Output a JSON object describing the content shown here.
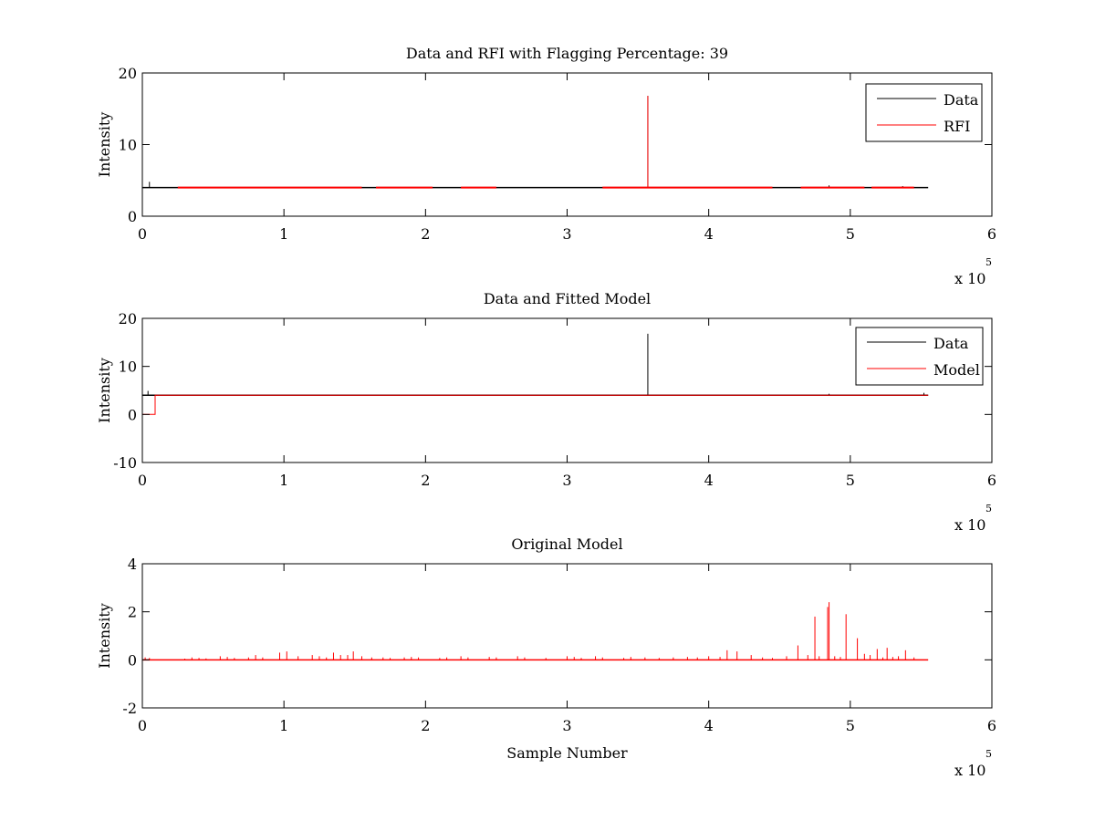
{
  "chart_data": [
    {
      "type": "line",
      "title": "Data and RFI with Flagging Percentage: 39",
      "xlabel": "",
      "ylabel": "Intensity",
      "xlim": [
        0,
        6
      ],
      "ylim": [
        0,
        20
      ],
      "x_multiplier": "x 10",
      "x_multiplier_exp": "5",
      "xticks": [
        0,
        1,
        2,
        3,
        4,
        5,
        6
      ],
      "yticks": [
        0,
        10,
        20
      ],
      "legend": "top-right",
      "series": [
        {
          "name": "Data",
          "color": "#000000",
          "baseline": 4.0,
          "x_end": 5.55,
          "spikes": [
            [
              0.05,
              4.8
            ],
            [
              3.57,
              16.8
            ],
            [
              4.85,
              4.3
            ],
            [
              5.37,
              4.2
            ]
          ]
        },
        {
          "name": "RFI",
          "color": "#ff0000",
          "baseline": 4.0,
          "segments": [
            [
              0.25,
              1.55
            ],
            [
              1.65,
              2.05
            ],
            [
              2.25,
              2.5
            ],
            [
              3.25,
              4.45
            ],
            [
              4.65,
              5.1
            ],
            [
              5.15,
              5.45
            ]
          ],
          "spikes": [
            [
              3.57,
              16.8
            ]
          ]
        }
      ]
    },
    {
      "type": "line",
      "title": "Data and Fitted Model",
      "xlabel": "",
      "ylabel": "Intensity",
      "xlim": [
        0,
        6
      ],
      "ylim": [
        -10,
        20
      ],
      "x_multiplier": "x 10",
      "x_multiplier_exp": "5",
      "xticks": [
        0,
        1,
        2,
        3,
        4,
        5,
        6
      ],
      "yticks": [
        -10,
        0,
        10,
        20
      ],
      "legend": "top-right",
      "series": [
        {
          "name": "Data",
          "color": "#000000",
          "baseline": 4.0,
          "x_end": 5.55,
          "spikes": [
            [
              0.04,
              4.9
            ],
            [
              3.57,
              16.8
            ],
            [
              4.85,
              4.3
            ],
            [
              5.52,
              4.5
            ]
          ]
        },
        {
          "name": "Model",
          "color": "#ff0000",
          "x": [
            0,
            0.09,
            0.09,
            5.55
          ],
          "y": [
            0,
            0,
            4.0,
            4.0
          ]
        }
      ]
    },
    {
      "type": "line",
      "title": "Original Model",
      "xlabel": "Sample Number",
      "ylabel": "Intensity",
      "xlim": [
        0,
        6
      ],
      "ylim": [
        -2,
        4
      ],
      "x_multiplier": "x 10",
      "x_multiplier_exp": "5",
      "xticks": [
        0,
        1,
        2,
        3,
        4,
        5,
        6
      ],
      "yticks": [
        -2,
        0,
        2,
        4
      ],
      "legend": "none",
      "series": [
        {
          "name": "",
          "color": "#ff0000",
          "baseline": 0,
          "x_end": 5.55,
          "spikes": [
            [
              0.02,
              0.1
            ],
            [
              0.05,
              0.08
            ],
            [
              0.3,
              0.05
            ],
            [
              0.35,
              0.1
            ],
            [
              0.4,
              0.08
            ],
            [
              0.45,
              0.06
            ],
            [
              0.55,
              0.15
            ],
            [
              0.6,
              0.12
            ],
            [
              0.65,
              0.08
            ],
            [
              0.75,
              0.1
            ],
            [
              0.8,
              0.2
            ],
            [
              0.85,
              0.1
            ],
            [
              0.97,
              0.3
            ],
            [
              1.02,
              0.35
            ],
            [
              1.1,
              0.15
            ],
            [
              1.2,
              0.2
            ],
            [
              1.25,
              0.15
            ],
            [
              1.3,
              0.1
            ],
            [
              1.35,
              0.3
            ],
            [
              1.4,
              0.2
            ],
            [
              1.45,
              0.2
            ],
            [
              1.49,
              0.35
            ],
            [
              1.55,
              0.15
            ],
            [
              1.62,
              0.1
            ],
            [
              1.7,
              0.1
            ],
            [
              1.75,
              0.08
            ],
            [
              1.85,
              0.1
            ],
            [
              1.9,
              0.12
            ],
            [
              1.95,
              0.1
            ],
            [
              2.1,
              0.08
            ],
            [
              2.15,
              0.1
            ],
            [
              2.25,
              0.15
            ],
            [
              2.3,
              0.1
            ],
            [
              2.45,
              0.12
            ],
            [
              2.5,
              0.1
            ],
            [
              2.65,
              0.15
            ],
            [
              2.7,
              0.1
            ],
            [
              2.85,
              0.08
            ],
            [
              3.0,
              0.15
            ],
            [
              3.05,
              0.12
            ],
            [
              3.1,
              0.08
            ],
            [
              3.2,
              0.15
            ],
            [
              3.25,
              0.1
            ],
            [
              3.4,
              0.08
            ],
            [
              3.45,
              0.12
            ],
            [
              3.55,
              0.1
            ],
            [
              3.65,
              0.08
            ],
            [
              3.75,
              0.1
            ],
            [
              3.85,
              0.12
            ],
            [
              3.92,
              0.1
            ],
            [
              4.0,
              0.15
            ],
            [
              4.08,
              0.12
            ],
            [
              4.13,
              0.4
            ],
            [
              4.2,
              0.35
            ],
            [
              4.3,
              0.2
            ],
            [
              4.38,
              0.1
            ],
            [
              4.45,
              0.08
            ],
            [
              4.55,
              0.15
            ],
            [
              4.63,
              0.6
            ],
            [
              4.7,
              0.2
            ],
            [
              4.75,
              1.8
            ],
            [
              4.78,
              0.15
            ],
            [
              4.84,
              2.2
            ],
            [
              4.85,
              2.4
            ],
            [
              4.89,
              0.15
            ],
            [
              4.93,
              0.12
            ],
            [
              4.97,
              1.9
            ],
            [
              5.05,
              0.9
            ],
            [
              5.1,
              0.25
            ],
            [
              5.14,
              0.2
            ],
            [
              5.19,
              0.45
            ],
            [
              5.23,
              0.1
            ],
            [
              5.26,
              0.5
            ],
            [
              5.3,
              0.12
            ],
            [
              5.34,
              0.15
            ],
            [
              5.39,
              0.4
            ],
            [
              5.45,
              0.1
            ]
          ]
        }
      ]
    }
  ]
}
